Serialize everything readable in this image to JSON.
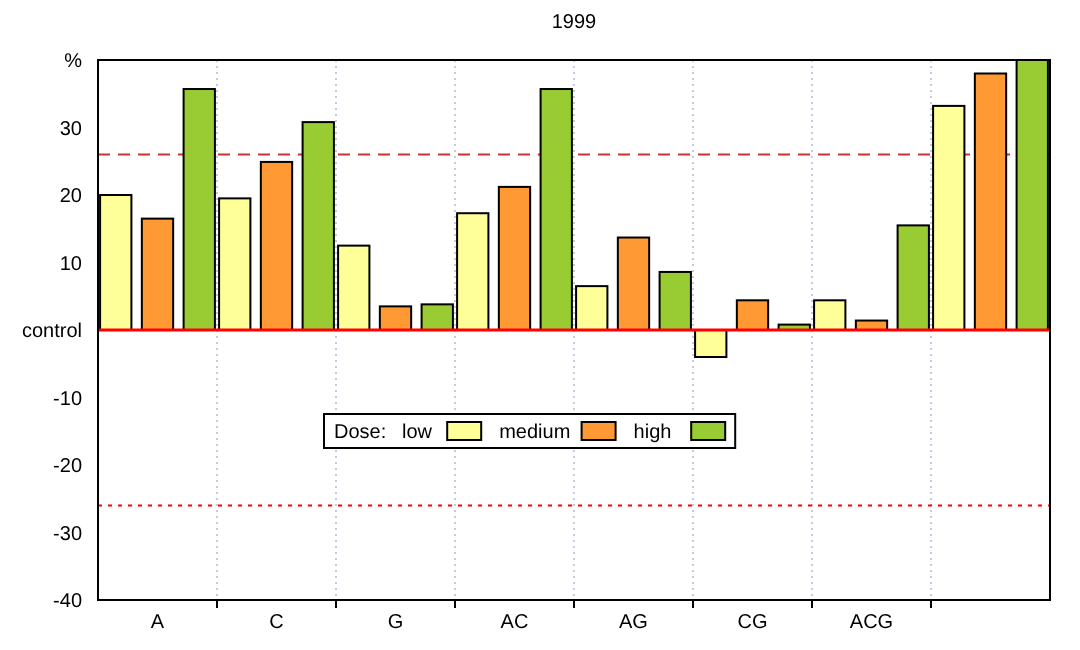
{
  "chart_data": {
    "type": "bar",
    "title": "1999",
    "categories": [
      "A",
      "C",
      "G",
      "AC",
      "AG",
      "CG",
      "ACG",
      null
    ],
    "series": [
      {
        "name": "low",
        "color": "#ffff99",
        "values": [
          20,
          19.5,
          12.5,
          17.3,
          6.5,
          -4,
          4.4,
          33.2
        ]
      },
      {
        "name": "medium",
        "color": "#ff9933",
        "values": [
          16.5,
          24.9,
          3.5,
          21.2,
          13.7,
          4.4,
          1.4,
          38
        ]
      },
      {
        "name": "high",
        "color": "#99cc33",
        "values": [
          35.7,
          30.8,
          3.8,
          35.7,
          8.6,
          0.8,
          15.5,
          40
        ]
      }
    ],
    "ylim": [
      -40,
      40
    ],
    "yticks": [
      -40,
      -30,
      -20,
      -10,
      {
        "value": 0,
        "label": "control"
      },
      10,
      20,
      30,
      {
        "value": 40,
        "label": "%"
      }
    ],
    "legend_title": "Dose:",
    "legend": "bottom",
    "grid": "x",
    "ref_lines": [
      {
        "axis": "y",
        "value": 0,
        "color": "#ff0000",
        "line_style": "solid"
      },
      {
        "axis": "y",
        "value": 26,
        "color": "#cc3333",
        "line_style": "dashed"
      },
      {
        "axis": "y",
        "value": -26,
        "color": "#ff0000",
        "line_style": "dotted"
      }
    ]
  }
}
